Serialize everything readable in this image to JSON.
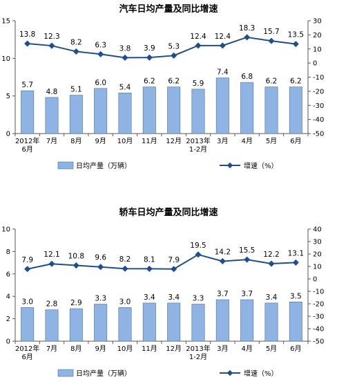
{
  "chart_data": [
    {
      "type": "bar+line",
      "title": "汽车日均产量及同比增速",
      "categories": [
        "2012年\n6月",
        "7月",
        "8月",
        "9月",
        "10月",
        "11月",
        "12月",
        "2013年\n1-2月",
        "3月",
        "4月",
        "5月",
        "6月"
      ],
      "series": [
        {
          "name": "日均产量（万辆）",
          "type": "bar",
          "axis": "left",
          "values": [
            5.7,
            4.8,
            5.1,
            6.0,
            5.4,
            6.2,
            6.2,
            5.9,
            7.4,
            6.8,
            6.2,
            6.2
          ]
        },
        {
          "name": "增速（%）",
          "type": "line",
          "axis": "right",
          "values": [
            13.8,
            12.3,
            8.2,
            6.3,
            3.8,
            3.9,
            5.3,
            12.4,
            12.4,
            18.3,
            15.7,
            13.5
          ]
        }
      ],
      "ylim_left": [
        0,
        15
      ],
      "yticks_left": [
        0,
        5,
        10,
        15
      ],
      "ylim_right": [
        -50,
        30
      ],
      "yticks_right": [
        -50,
        -40,
        -30,
        -20,
        -10,
        0,
        10,
        20,
        30
      ],
      "grid": false,
      "legend": "bottom",
      "colors": {
        "bar": "#8fb4e3",
        "bar_stroke": "#4a6c9b",
        "line": "#1f4e8c"
      }
    },
    {
      "type": "bar+line",
      "title": "轿车日均产量及同比增速",
      "categories": [
        "2012年\n6月",
        "7月",
        "8月",
        "9月",
        "10月",
        "11月",
        "12月",
        "2013年\n1-2月",
        "3月",
        "4月",
        "5月",
        "6月"
      ],
      "series": [
        {
          "name": "日均产量（万辆）",
          "type": "bar",
          "axis": "left",
          "values": [
            3.0,
            2.8,
            2.9,
            3.3,
            3.0,
            3.4,
            3.4,
            3.3,
            3.7,
            3.7,
            3.4,
            3.5
          ]
        },
        {
          "name": "增速（%）",
          "type": "line",
          "axis": "right",
          "values": [
            7.9,
            12.1,
            10.8,
            9.6,
            8.2,
            8.1,
            7.9,
            19.5,
            14.2,
            15.5,
            12.2,
            13.1
          ]
        }
      ],
      "ylim_left": [
        0,
        10
      ],
      "yticks_left": [
        0,
        2,
        4,
        6,
        8,
        10
      ],
      "ylim_right": [
        -50,
        40
      ],
      "yticks_right": [
        -50,
        -40,
        -30,
        -20,
        -10,
        0,
        10,
        20,
        30,
        40
      ],
      "grid": false,
      "legend": "bottom",
      "colors": {
        "bar": "#8fb4e3",
        "bar_stroke": "#4a6c9b",
        "line": "#1f4e8c"
      }
    }
  ]
}
